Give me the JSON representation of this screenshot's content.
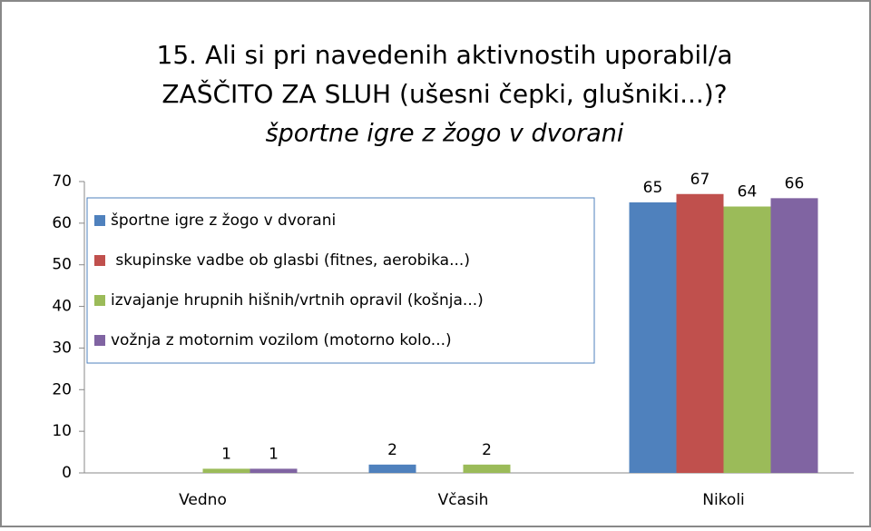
{
  "chart_data": {
    "type": "bar",
    "title": [
      "15. Ali si pri navedenih aktivnostih uporabil/a",
      "ZAŠČITO ZA SLUH (ušesni čepki, glušniki...)?"
    ],
    "subtitle": "športne igre z žogo v dvorani",
    "categories": [
      "Vedno",
      "Včasih",
      "Nikoli"
    ],
    "series": [
      {
        "name": "športne igre z žogo v dvorani",
        "color": "#4f81bd",
        "values": [
          0,
          2,
          65
        ]
      },
      {
        "name": " skupinske vadbe ob glasbi (fitnes, aerobika...)",
        "color": "#c0504d",
        "values": [
          0,
          0,
          67
        ]
      },
      {
        "name": "izvajanje hrupnih hišnih/vrtnih opravil (košnja...)",
        "color": "#9bbb59",
        "values": [
          1,
          2,
          64
        ]
      },
      {
        "name": "vožnja z motornim vozilom (motorno kolo...)",
        "color": "#8064a2",
        "values": [
          1,
          0,
          66
        ]
      }
    ],
    "ylim": [
      0,
      70
    ],
    "yticks": [
      0,
      10,
      20,
      30,
      40,
      50,
      60,
      70
    ],
    "grid": false,
    "legend": "top-left"
  }
}
